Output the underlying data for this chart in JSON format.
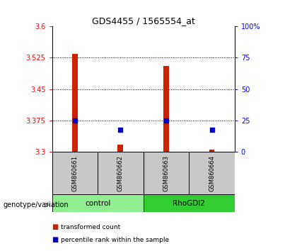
{
  "title": "GDS4455 / 1565554_at",
  "samples": [
    "GSM860661",
    "GSM860662",
    "GSM860663",
    "GSM860664"
  ],
  "red_bar_values": [
    3.535,
    3.317,
    3.505,
    3.305
  ],
  "blue_square_values": [
    3.375,
    3.352,
    3.375,
    3.352
  ],
  "y_min": 3.3,
  "y_max": 3.6,
  "y_ticks": [
    3.3,
    3.375,
    3.45,
    3.525,
    3.6
  ],
  "y_tick_labels": [
    "3.3",
    "3.375",
    "3.45",
    "3.525",
    "3.6"
  ],
  "right_y_ticks": [
    0,
    25,
    50,
    75,
    100
  ],
  "right_y_tick_labels": [
    "0",
    "25",
    "50",
    "75",
    "100%"
  ],
  "grid_lines": [
    3.375,
    3.45,
    3.525
  ],
  "groups": [
    {
      "label": "control",
      "color": "#90ee90"
    },
    {
      "label": "RhoGDI2",
      "color": "#32cd32"
    }
  ],
  "bar_color": "#cc2200",
  "square_color": "#0000cc",
  "bar_bottom": 3.3,
  "bar_width": 0.12,
  "square_size": 18,
  "label_red": "transformed count",
  "label_blue": "percentile rank within the sample",
  "genotype_label": "genotype/variation",
  "sample_box_color": "#c8c8c8",
  "title_fontsize": 9
}
